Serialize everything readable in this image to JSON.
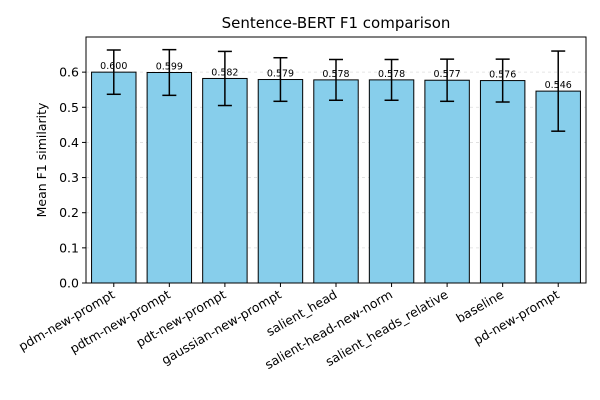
{
  "chart_data": {
    "type": "bar",
    "title": "Sentence-BERT F1 comparison",
    "xlabel": "",
    "ylabel": "Mean F1 similarity",
    "ylim": [
      0,
      0.7
    ],
    "yticks": [
      0.0,
      0.1,
      0.2,
      0.3,
      0.4,
      0.5,
      0.6
    ],
    "ytick_labels": [
      "0.0",
      "0.1",
      "0.2",
      "0.3",
      "0.4",
      "0.5",
      "0.6"
    ],
    "grid": "y-dashed",
    "categories": [
      "pdm-new-prompt",
      "pdtm-new-prompt",
      "pdt-new-prompt",
      "gaussian-new-prompt",
      "salient_head",
      "salient-head-new-norm",
      "salient_heads_relative",
      "baseline",
      "pd-new-prompt"
    ],
    "values": [
      0.6,
      0.599,
      0.582,
      0.579,
      0.578,
      0.578,
      0.577,
      0.576,
      0.546
    ],
    "value_labels": [
      "0.600",
      "0.599",
      "0.582",
      "0.579",
      "0.578",
      "0.578",
      "0.577",
      "0.576",
      "0.546"
    ],
    "errors": [
      0.063,
      0.065,
      0.077,
      0.062,
      0.058,
      0.058,
      0.06,
      0.061,
      0.114
    ],
    "bar_color": "#87CEEB",
    "edge_color": "#000000",
    "grid_color": "#dddddd"
  }
}
